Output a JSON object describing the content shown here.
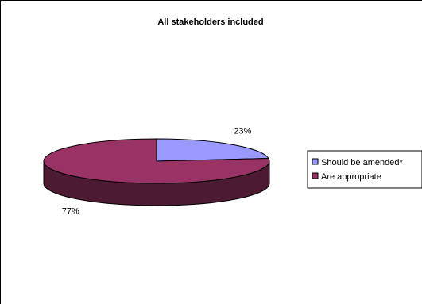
{
  "chart_data": {
    "type": "pie",
    "title": "All stakeholders included",
    "categories": [
      "Should be amended*",
      "Are appropriate"
    ],
    "values": [
      23,
      77
    ],
    "labels": [
      "23%",
      "77%"
    ],
    "colors": [
      "#9999FF",
      "#993366"
    ],
    "side_colors": [
      "#4C4C80",
      "#4D1A33"
    ],
    "legend_position": "right",
    "three_d": true
  }
}
